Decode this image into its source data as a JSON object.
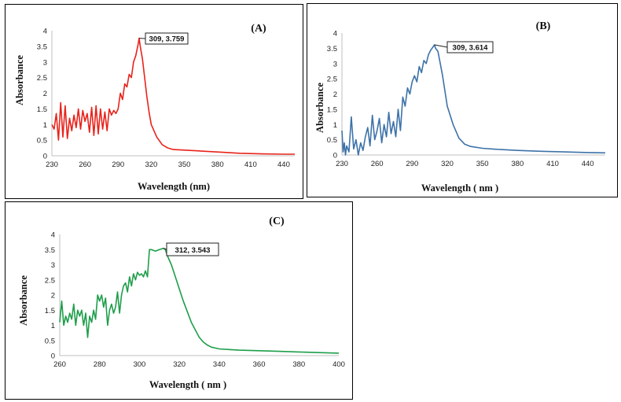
{
  "panels": [
    {
      "label": "(A)",
      "xlabel": "Wavelength (nm)",
      "ylabel": "Absorbance",
      "callout": "309, 3.759"
    },
    {
      "label": "(B)",
      "xlabel": "Wavelength ( nm )",
      "ylabel": "Absorbance",
      "callout": "309, 3.614"
    },
    {
      "label": "(C)",
      "xlabel": "Wavelength ( nm )",
      "ylabel": "Absorbance",
      "callout": "312, 3.543"
    }
  ],
  "chart_data": [
    {
      "type": "line",
      "title": "(A)",
      "xlabel": "Wavelength (nm)",
      "ylabel": "Absorbance",
      "xlim": [
        230,
        450
      ],
      "ylim": [
        0,
        4
      ],
      "xticks": [
        230,
        260,
        290,
        320,
        350,
        380,
        410,
        440
      ],
      "yticks": [
        0,
        0.5,
        1,
        1.5,
        2,
        2.5,
        3,
        3.5,
        4
      ],
      "color": "#e8231b",
      "annotation": {
        "x": 309,
        "y": 3.759,
        "text": "309, 3.759"
      },
      "x": [
        230,
        232,
        234,
        236,
        238,
        240,
        242,
        244,
        246,
        248,
        250,
        252,
        254,
        256,
        258,
        260,
        262,
        264,
        266,
        268,
        270,
        272,
        274,
        276,
        278,
        280,
        282,
        284,
        286,
        288,
        290,
        292,
        294,
        296,
        298,
        300,
        302,
        304,
        306,
        308,
        309,
        310,
        312,
        314,
        316,
        318,
        320,
        325,
        330,
        335,
        340,
        350,
        360,
        380,
        400,
        420,
        440,
        450
      ],
      "y": [
        1.0,
        0.85,
        1.35,
        0.5,
        1.7,
        0.6,
        1.6,
        0.55,
        1.2,
        0.8,
        1.3,
        0.9,
        1.5,
        0.85,
        1.45,
        1.1,
        1.35,
        0.75,
        1.55,
        0.65,
        1.6,
        0.7,
        1.5,
        0.85,
        1.4,
        0.8,
        1.5,
        1.3,
        1.45,
        1.35,
        1.5,
        2.0,
        1.8,
        2.3,
        2.2,
        2.6,
        2.5,
        3.0,
        3.2,
        3.55,
        3.759,
        3.5,
        3.1,
        2.5,
        1.9,
        1.4,
        1.0,
        0.6,
        0.35,
        0.25,
        0.2,
        0.18,
        0.16,
        0.12,
        0.08,
        0.06,
        0.05,
        0.05
      ]
    },
    {
      "type": "line",
      "title": "(B)",
      "xlabel": "Wavelength ( nm )",
      "ylabel": "Absorbance",
      "xlim": [
        230,
        455
      ],
      "ylim": [
        0,
        4
      ],
      "xticks": [
        230,
        260,
        290,
        320,
        350,
        380,
        410,
        440
      ],
      "yticks": [
        0,
        0.5,
        1,
        1.5,
        2,
        2.5,
        3,
        3.5,
        4
      ],
      "color": "#3d72a8",
      "annotation": {
        "x": 309,
        "y": 3.614,
        "text": "309, 3.614"
      },
      "x": [
        230,
        231,
        232,
        233,
        234,
        236,
        238,
        240,
        242,
        244,
        246,
        248,
        250,
        252,
        254,
        256,
        258,
        260,
        262,
        264,
        266,
        268,
        270,
        272,
        274,
        276,
        278,
        280,
        282,
        284,
        286,
        288,
        290,
        292,
        294,
        296,
        298,
        300,
        302,
        304,
        306,
        308,
        309,
        310,
        312,
        314,
        316,
        318,
        320,
        325,
        330,
        335,
        340,
        350,
        360,
        380,
        400,
        420,
        440,
        455
      ],
      "y": [
        0.8,
        0.1,
        0.4,
        0.0,
        0.3,
        0.1,
        1.25,
        0.2,
        0.5,
        0.0,
        0.4,
        0.15,
        0.6,
        0.9,
        0.3,
        1.3,
        0.5,
        0.8,
        1.2,
        0.4,
        1.0,
        0.6,
        1.4,
        0.7,
        1.1,
        0.6,
        1.5,
        0.8,
        1.9,
        1.6,
        2.2,
        2.0,
        2.4,
        2.6,
        2.4,
        2.9,
        2.7,
        3.1,
        3.0,
        3.3,
        3.45,
        3.55,
        3.614,
        3.5,
        3.4,
        3.0,
        2.6,
        2.1,
        1.6,
        1.0,
        0.55,
        0.35,
        0.28,
        0.22,
        0.19,
        0.15,
        0.12,
        0.1,
        0.08,
        0.07
      ]
    },
    {
      "type": "line",
      "title": "(C)",
      "xlabel": "Wavelength ( nm )",
      "ylabel": "Absorbance",
      "xlim": [
        260,
        400
      ],
      "ylim": [
        0,
        4
      ],
      "xticks": [
        260,
        280,
        300,
        320,
        340,
        360,
        380,
        400
      ],
      "yticks": [
        0,
        0.5,
        1,
        1.5,
        2,
        2.5,
        3,
        3.5,
        4
      ],
      "color": "#1e9e4a",
      "annotation": {
        "x": 312,
        "y": 3.543,
        "text": "312, 3.543"
      },
      "x": [
        260,
        261,
        262,
        263,
        264,
        265,
        266,
        267,
        268,
        269,
        270,
        271,
        272,
        273,
        274,
        275,
        276,
        277,
        278,
        279,
        280,
        281,
        282,
        283,
        284,
        285,
        286,
        287,
        288,
        289,
        290,
        291,
        292,
        293,
        294,
        295,
        296,
        297,
        298,
        299,
        300,
        301,
        302,
        303,
        304,
        305,
        306,
        308,
        310,
        312,
        313,
        314,
        316,
        318,
        320,
        322,
        324,
        326,
        328,
        330,
        332,
        334,
        336,
        338,
        340,
        345,
        350,
        360,
        370,
        380,
        390,
        400
      ],
      "y": [
        1.1,
        1.8,
        1.0,
        1.3,
        1.1,
        1.4,
        1.2,
        1.7,
        1.0,
        1.5,
        1.3,
        1.5,
        1.0,
        1.4,
        0.6,
        1.3,
        1.1,
        1.5,
        1.2,
        2.0,
        1.8,
        2.0,
        1.6,
        1.9,
        1.0,
        1.5,
        1.7,
        1.4,
        1.6,
        2.1,
        1.4,
        2.0,
        2.3,
        2.4,
        2.1,
        2.6,
        2.3,
        2.7,
        2.5,
        2.75,
        2.65,
        2.7,
        2.6,
        2.8,
        2.6,
        3.5,
        3.5,
        3.45,
        3.5,
        3.543,
        3.5,
        3.3,
        3.0,
        2.6,
        2.2,
        1.8,
        1.45,
        1.1,
        0.85,
        0.6,
        0.45,
        0.35,
        0.28,
        0.25,
        0.22,
        0.2,
        0.18,
        0.16,
        0.14,
        0.12,
        0.1,
        0.08
      ]
    }
  ]
}
